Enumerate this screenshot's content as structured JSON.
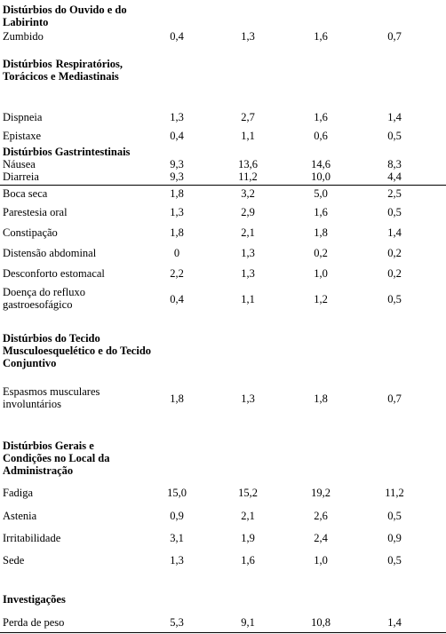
{
  "sections": [
    {
      "title": "Distúrbios do Ouvido e do Labirinto"
    },
    {
      "title": "Distúrbios Respiratórios, Torácicos e Mediastinais"
    },
    {
      "title": "Distúrbios Gastrintestinais"
    },
    {
      "title": "Distúrbios do Tecido Musculoesquelético e do Tecido Conjuntivo"
    },
    {
      "title": "Distúrbios Gerais e Condições no Local da Administração"
    },
    {
      "title": "Investigações"
    }
  ],
  "rows": [
    {
      "label": "Zumbido",
      "values": [
        "0,4",
        "1,3",
        "1,6",
        "0,7"
      ]
    },
    {
      "label": "Dispneia",
      "values": [
        "1,3",
        "2,7",
        "1,6",
        "1,4"
      ]
    },
    {
      "label": "Epistaxe",
      "values": [
        "0,4",
        "1,1",
        "0,6",
        "0,5"
      ]
    },
    {
      "label": "Náusea",
      "values": [
        "9,3",
        "13,6",
        "14,6",
        "8,3"
      ]
    },
    {
      "label": "Diarreia",
      "values": [
        "9,3",
        "11,2",
        "10,0",
        "4,4"
      ]
    },
    {
      "label": "Boca seca",
      "values": [
        "1,8",
        "3,2",
        "5,0",
        "2,5"
      ]
    },
    {
      "label": "Parestesia oral",
      "values": [
        "1,3",
        "2,9",
        "1,6",
        "0,5"
      ]
    },
    {
      "label": "Constipação",
      "values": [
        "1,8",
        "2,1",
        "1,8",
        "1,4"
      ]
    },
    {
      "label": "Distensão abdominal",
      "values": [
        "0",
        "1,3",
        "0,2",
        "0,2"
      ]
    },
    {
      "label": "Desconforto estomacal",
      "values": [
        "2,2",
        "1,3",
        "1,0",
        "0,2"
      ]
    },
    {
      "label": "Doença do refluxo gastroesofágico",
      "values": [
        "0,4",
        "1,1",
        "1,2",
        "0,5"
      ]
    },
    {
      "label": "Espasmos musculares involuntários",
      "values": [
        "1,8",
        "1,3",
        "1,8",
        "0,7"
      ]
    },
    {
      "label": "Fadiga",
      "values": [
        "15,0",
        "15,2",
        "19,2",
        "11,2"
      ]
    },
    {
      "label": "Astenia",
      "values": [
        "0,9",
        "2,1",
        "2,6",
        "0,5"
      ]
    },
    {
      "label": "Irritabilidade",
      "values": [
        "3,1",
        "1,9",
        "2,4",
        "0,9"
      ]
    },
    {
      "label": "Sede",
      "values": [
        "1,3",
        "1,6",
        "1,0",
        "0,5"
      ]
    },
    {
      "label": "Perda de peso",
      "values": [
        "5,3",
        "9,1",
        "10,8",
        "1,4"
      ]
    }
  ]
}
